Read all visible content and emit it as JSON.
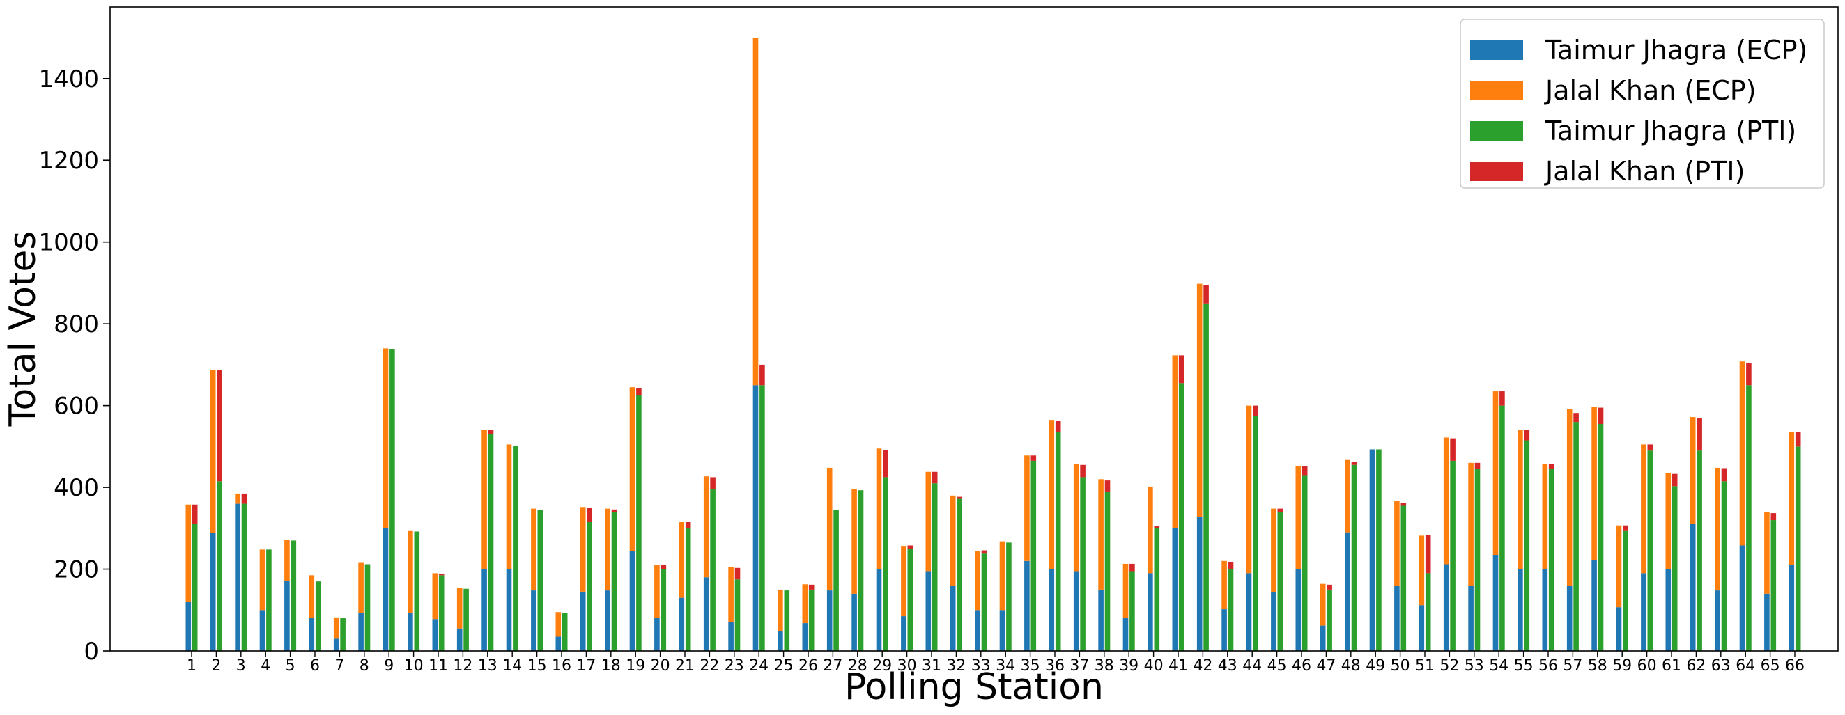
{
  "chart_data": {
    "type": "bar",
    "xlabel": "Polling Station",
    "ylabel": "Total Votes",
    "ylim": [
      0,
      1575
    ],
    "yticks": [
      0,
      200,
      400,
      600,
      800,
      1000,
      1200,
      1400
    ],
    "categories": [
      "1",
      "2",
      "3",
      "4",
      "5",
      "6",
      "7",
      "8",
      "9",
      "10",
      "11",
      "12",
      "13",
      "14",
      "15",
      "16",
      "17",
      "18",
      "19",
      "20",
      "21",
      "22",
      "23",
      "24",
      "25",
      "26",
      "27",
      "28",
      "29",
      "30",
      "31",
      "32",
      "33",
      "34",
      "35",
      "36",
      "37",
      "38",
      "39",
      "40",
      "41",
      "42",
      "43",
      "44",
      "45",
      "46",
      "47",
      "48",
      "49",
      "50",
      "51",
      "52",
      "53",
      "54",
      "55",
      "56",
      "57",
      "58",
      "59",
      "60",
      "61",
      "62",
      "63",
      "64",
      "65",
      "66"
    ],
    "groups": [
      {
        "name": "ECP",
        "stacked_series": [
          {
            "name": "Taimur Jhagra (ECP)",
            "color": "#1f77b4",
            "values": [
              120,
              288,
              360,
              100,
              172,
              80,
              30,
              92,
              300,
              92,
              78,
              55,
              200,
              200,
              148,
              35,
              145,
              148,
              245,
              80,
              130,
              180,
              70,
              650,
              48,
              68,
              148,
              140,
              200,
              85,
              195,
              160,
              100,
              100,
              220,
              200,
              195,
              150,
              80,
              190,
              300,
              328,
              102,
              190,
              143,
              200,
              62,
              290,
              493,
              160,
              112,
              212,
              160,
              235,
              200,
              200,
              160,
              222,
              107,
              190,
              200,
              310,
              148,
              258,
              140,
              210
            ]
          },
          {
            "name": "Jalal Khan (ECP)",
            "color": "#ff7f0e",
            "values": [
              238,
              400,
              25,
              148,
              100,
              105,
              52,
              125,
              440,
              203,
              112,
              100,
              340,
              305,
              200,
              60,
              207,
              200,
              400,
              130,
              185,
              247,
              136,
              850,
              102,
              95,
              300,
              255,
              295,
              172,
              243,
              220,
              145,
              168,
              258,
              365,
              262,
              270,
              133,
              212,
              423,
              570,
              118,
              410,
              205,
              253,
              102,
              177,
              0,
              207,
              170,
              310,
              300,
              400,
              340,
              258,
              432,
              375,
              200,
              315,
              235,
              262,
              300,
              450,
              200,
              325
            ]
          }
        ]
      },
      {
        "name": "PTI",
        "stacked_series": [
          {
            "name": "Taimur Jhagra (PTI)",
            "color": "#2ca02c",
            "values": [
              310,
              415,
              360,
              248,
              270,
              170,
              80,
              212,
              738,
              292,
              185,
              152,
              530,
              502,
              345,
              92,
              315,
              340,
              625,
              200,
              300,
              395,
              175,
              650,
              148,
              150,
              345,
              393,
              425,
              250,
              410,
              372,
              238,
              265,
              465,
              535,
              425,
              390,
              195,
              300,
              655,
              850,
              200,
              575,
              340,
              430,
              150,
              455,
              493,
              355,
              190,
              465,
              445,
              600,
              515,
              445,
              560,
              555,
              295,
              490,
              403,
              490,
              415,
              650,
              320,
              500
            ]
          },
          {
            "name": "Jalal Khan (PTI)",
            "color": "#d62728",
            "values": [
              48,
              272,
              25,
              0,
              0,
              0,
              0,
              0,
              0,
              0,
              3,
              0,
              10,
              0,
              0,
              0,
              35,
              6,
              18,
              10,
              15,
              30,
              28,
              50,
              0,
              12,
              0,
              0,
              67,
              8,
              28,
              5,
              8,
              0,
              13,
              28,
              30,
              27,
              18,
              5,
              68,
              45,
              18,
              25,
              8,
              22,
              12,
              8,
              0,
              7,
              93,
              55,
              15,
              35,
              25,
              13,
              22,
              40,
              12,
              15,
              30,
              80,
              32,
              55,
              17,
              35
            ]
          }
        ]
      }
    ],
    "legend": {
      "placement": "top-right",
      "entries": [
        {
          "label": "Taimur Jhagra (ECP)",
          "color": "#1f77b4"
        },
        {
          "label": "Jalal Khan (ECP)",
          "color": "#ff7f0e"
        },
        {
          "label": "Taimur Jhagra (PTI)",
          "color": "#2ca02c"
        },
        {
          "label": "Jalal Khan (PTI)",
          "color": "#d62728"
        }
      ]
    },
    "grid": false
  }
}
